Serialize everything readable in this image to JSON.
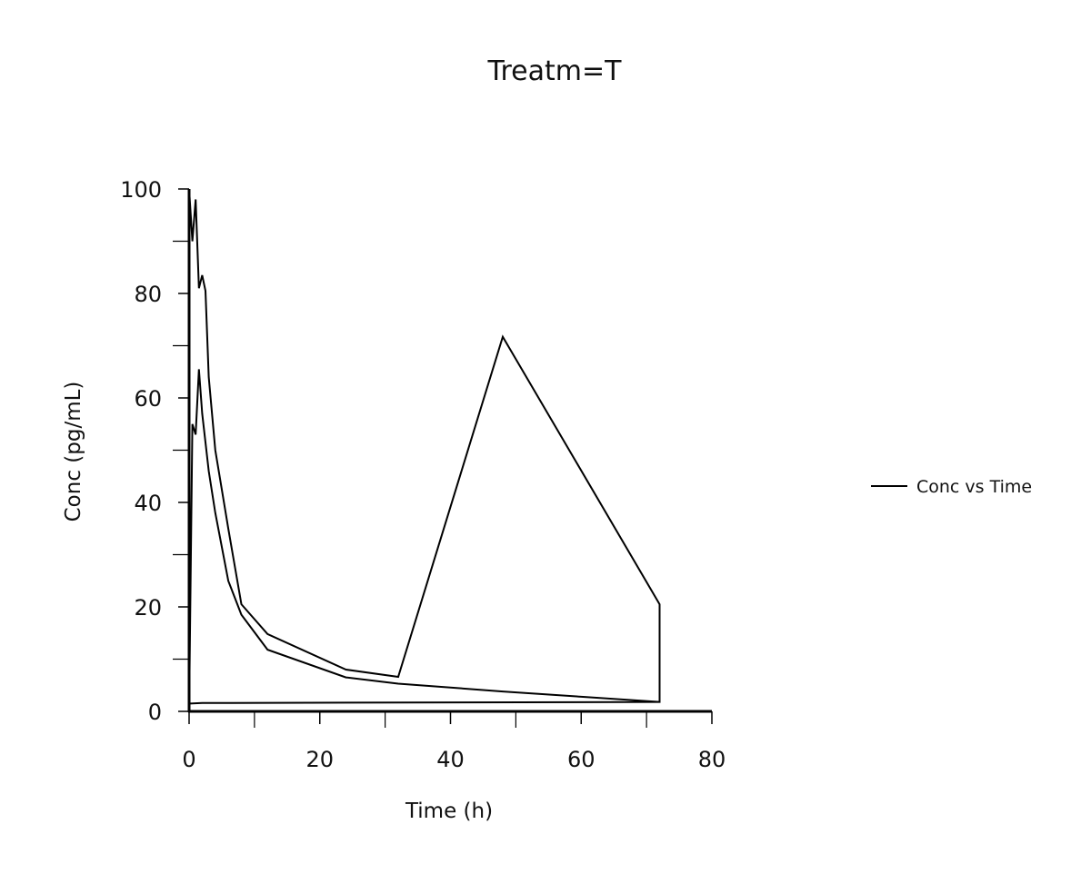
{
  "chart_data": {
    "type": "line",
    "title": "Treatm=T",
    "xlabel": "Time (h)",
    "ylabel": "Conc (pg/mL)",
    "xlim": [
      0,
      80
    ],
    "ylim": [
      0,
      100
    ],
    "xticks": [
      0,
      20,
      40,
      60,
      80
    ],
    "yticks": [
      0,
      20,
      40,
      60,
      80,
      100
    ],
    "xtick_labels": [
      "0",
      "20",
      "40",
      "60",
      "80"
    ],
    "ytick_labels": [
      "0",
      "20",
      "40",
      "60",
      "80",
      "100"
    ],
    "grid": false,
    "legend_position": "right",
    "series": [
      {
        "name": "Conc vs Time",
        "color": "#000000",
        "x": [
          0,
          0,
          0.5,
          1,
          1.5,
          2,
          2.5,
          3,
          4,
          6,
          8,
          12,
          24,
          32,
          48,
          72,
          72,
          60,
          48,
          32,
          24,
          12,
          8,
          6,
          4,
          3,
          2,
          1.5,
          1,
          0.5,
          0,
          0,
          0.2,
          2,
          72
        ],
        "y": [
          0,
          100,
          90,
          98,
          81,
          83.5,
          80.5,
          64,
          50,
          35,
          20.5,
          14.8,
          8,
          6.6,
          71.7,
          20.5,
          1.8,
          2.8,
          3.8,
          5.3,
          6.5,
          11.8,
          18.5,
          25,
          38,
          46,
          57,
          65.5,
          53,
          55,
          0,
          1.7,
          1.5,
          1.6,
          1.8
        ]
      }
    ]
  }
}
